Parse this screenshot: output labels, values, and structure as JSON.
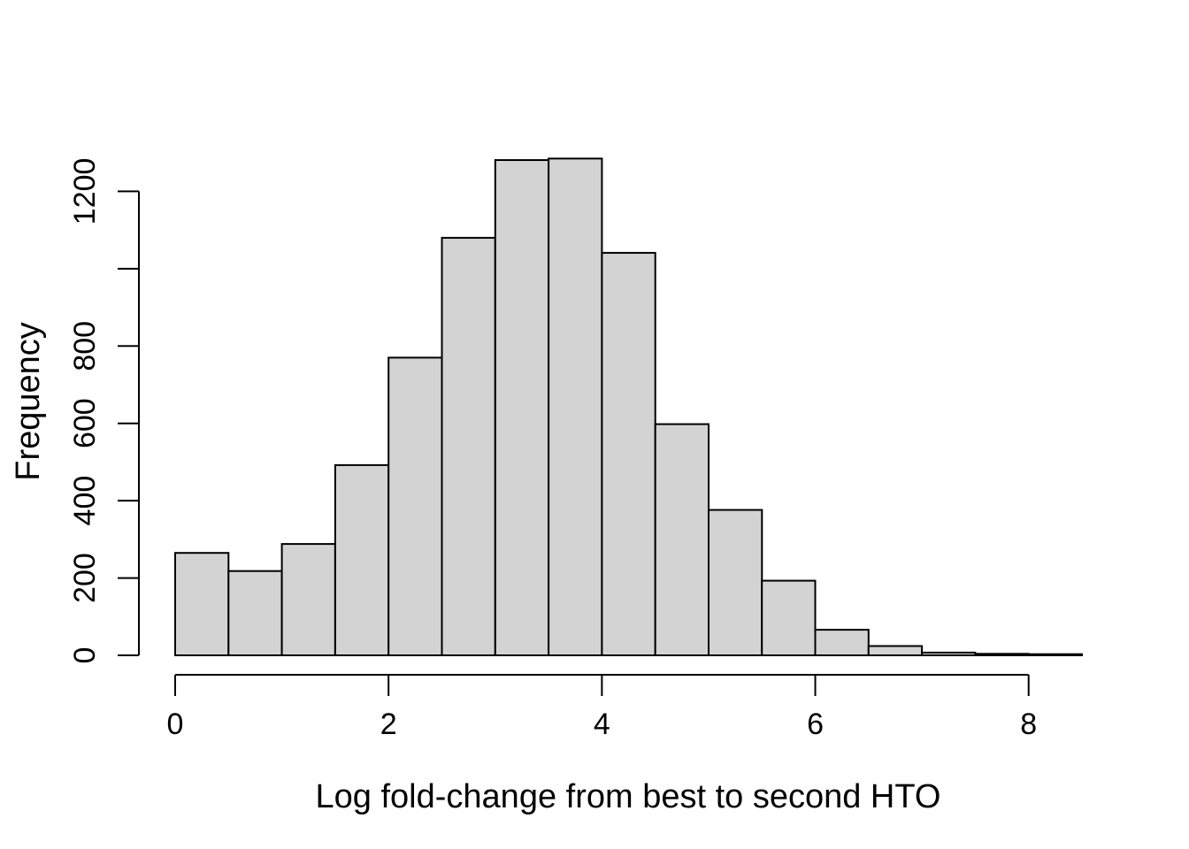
{
  "chart_data": {
    "type": "bar",
    "subtype": "histogram",
    "title": "",
    "xlabel": "Log fold-change from best to second HTO",
    "ylabel": "Frequency",
    "bin_edges": [
      0,
      0.5,
      1,
      1.5,
      2,
      2.5,
      3,
      3.5,
      4,
      4.5,
      5,
      5.5,
      6,
      6.5,
      7,
      7.5,
      8,
      8.5
    ],
    "counts": [
      265,
      218,
      288,
      492,
      770,
      1080,
      1281,
      1285,
      1041,
      598,
      376,
      193,
      66,
      24,
      7,
      4,
      3
    ],
    "x_ticks": [
      0,
      2,
      4,
      6,
      8
    ],
    "x_tick_labels": [
      "0",
      "2",
      "4",
      "6",
      "8"
    ],
    "y_ticks": [
      0,
      200,
      400,
      600,
      800,
      1000,
      1200
    ],
    "y_tick_labels": [
      "0",
      "200",
      "400",
      "600",
      "800",
      "",
      "1200"
    ],
    "xlim": [
      0,
      8.5
    ],
    "ylim": [
      0,
      1285
    ],
    "grid": "off",
    "legend": "none",
    "bar_fill": "#d3d3d3",
    "bar_stroke": "#000000",
    "axis_color": "#000000",
    "background": "#ffffff"
  }
}
